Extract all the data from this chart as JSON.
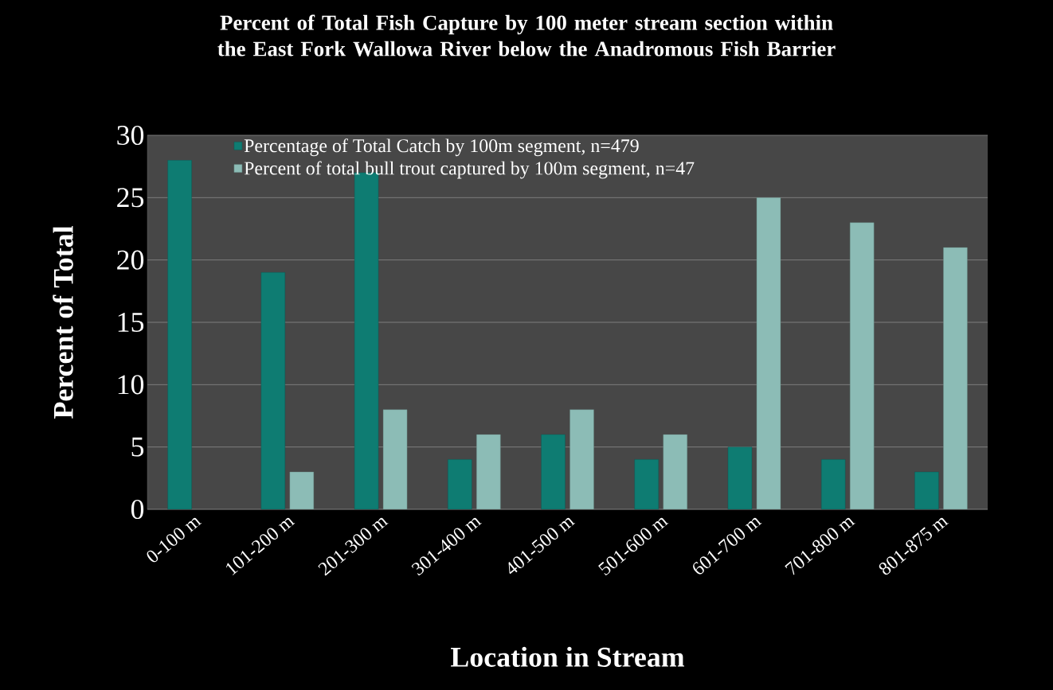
{
  "chart_data": {
    "type": "bar",
    "title": "Percent of Total Fish Capture by 100 meter stream section within the East Fork Wallowa River below the Anadromous Fish Barrier",
    "xlabel": "Location in Stream",
    "ylabel": "Percent of Total",
    "categories": [
      "0-100 m",
      "101-200 m",
      "201-300 m",
      "301-400 m",
      "401-500 m",
      "501-600 m",
      "601-700 m",
      "701-800 m",
      "801-875 m"
    ],
    "series": [
      {
        "name": "Percentage of Total Catch by 100m segment, n=479",
        "color": "#0e7c72",
        "values": [
          28,
          19,
          27,
          4,
          6,
          4,
          5,
          4,
          3
        ]
      },
      {
        "name": "Percent of total bull trout captured by 100m segment, n=47",
        "color": "#8cbcb6",
        "values": [
          null,
          3,
          8,
          6,
          8,
          6,
          25,
          23,
          21
        ]
      }
    ],
    "ylim": [
      0,
      30
    ],
    "yticks": [
      0,
      5,
      10,
      15,
      20,
      25,
      30
    ],
    "grid": "y",
    "legend": "top"
  }
}
